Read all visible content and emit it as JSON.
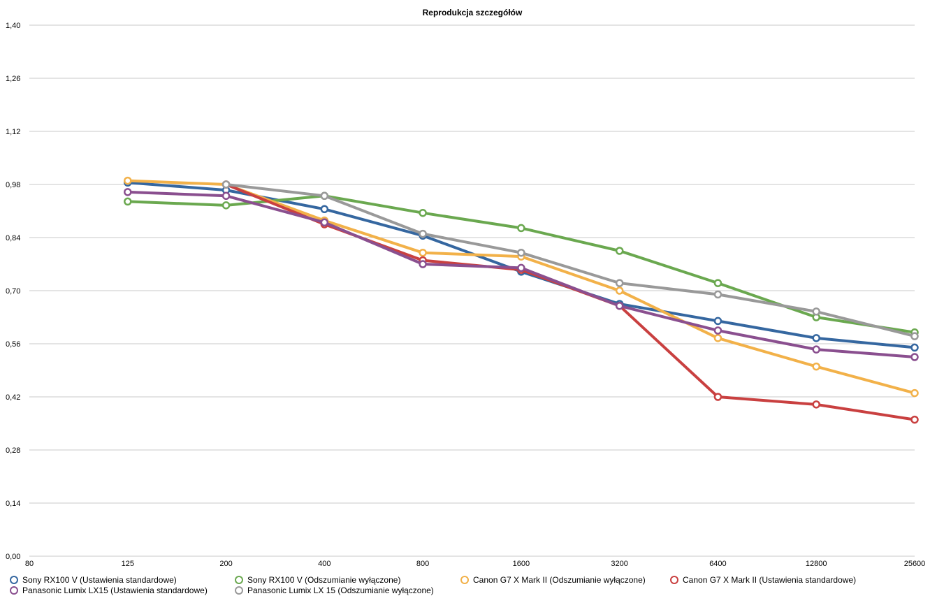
{
  "chart_data": {
    "type": "line",
    "title": "Reprodukcja szczegółów",
    "xlabel": "",
    "ylabel": "",
    "x_ticks": [
      "80",
      "125",
      "200",
      "400",
      "800",
      "1600",
      "3200",
      "6400",
      "12800",
      "25600"
    ],
    "categories": [
      "125",
      "200",
      "400",
      "800",
      "1600",
      "3200",
      "6400",
      "12800",
      "25600"
    ],
    "y_ticks": [
      "0,00",
      "0,14",
      "0,28",
      "0,42",
      "0,56",
      "0,70",
      "0,84",
      "0,98",
      "1,12",
      "1,26",
      "1,40"
    ],
    "ylim": [
      0,
      1.4
    ],
    "grid": true,
    "legend_position": "bottom",
    "series": [
      {
        "name": "Sony RX100 V (Ustawienia standardowe)",
        "color": "#3567a0",
        "values": [
          0.985,
          0.965,
          0.915,
          0.845,
          0.75,
          0.665,
          0.62,
          0.575,
          0.55
        ]
      },
      {
        "name": "Sony RX100 V (Odszumianie wyłączone)",
        "color": "#6aa84f",
        "values": [
          0.935,
          0.925,
          0.95,
          0.905,
          0.865,
          0.805,
          0.72,
          0.63,
          0.59
        ]
      },
      {
        "name": "Canon G7 X Mark II (Odszumianie wyłączone)",
        "color": "#f2b149",
        "values": [
          0.99,
          0.98,
          0.885,
          0.8,
          0.79,
          0.7,
          0.575,
          0.5,
          0.43
        ]
      },
      {
        "name": "Canon G7 X Mark II (Ustawienia standardowe)",
        "color": "#c94040",
        "values": [
          null,
          0.98,
          0.875,
          0.78,
          0.755,
          0.66,
          0.42,
          0.4,
          0.36
        ]
      },
      {
        "name": "Panasonic Lumix LX15 (Ustawienia standardowe)",
        "color": "#8a4f8f",
        "values": [
          0.96,
          0.95,
          0.88,
          0.77,
          0.76,
          0.66,
          0.595,
          0.545,
          0.525
        ]
      },
      {
        "name": "Panasonic Lumix LX 15 (Odszumianie wyłączone)",
        "color": "#999999",
        "values": [
          null,
          0.98,
          0.95,
          0.85,
          0.8,
          0.72,
          0.69,
          0.645,
          0.58
        ]
      }
    ]
  }
}
